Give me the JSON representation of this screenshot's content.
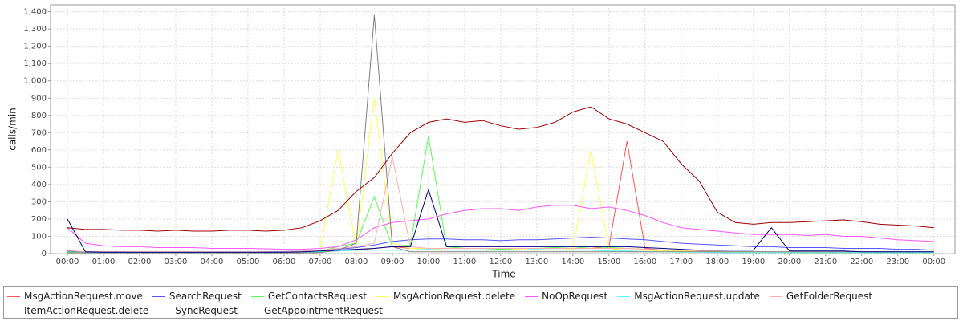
{
  "chart_data": {
    "type": "line",
    "x_label": "Time",
    "y_label": "calls/min",
    "x": [
      0,
      30,
      60,
      90,
      120,
      150,
      180,
      210,
      240,
      270,
      300,
      330,
      360,
      390,
      420,
      450,
      480,
      510,
      540,
      570,
      600,
      630,
      660,
      690,
      720,
      750,
      780,
      810,
      840,
      870,
      900,
      930,
      960,
      990,
      1020,
      1050,
      1080,
      1110,
      1140,
      1170,
      1200,
      1230,
      1260,
      1290,
      1320,
      1350,
      1380,
      1410,
      1440
    ],
    "xlim": [
      -28,
      1475
    ],
    "xticks": [
      {
        "value": 0,
        "label": "00:00"
      },
      {
        "value": 60,
        "label": "01:00"
      },
      {
        "value": 120,
        "label": "02:00"
      },
      {
        "value": 180,
        "label": "03:00"
      },
      {
        "value": 240,
        "label": "04:00"
      },
      {
        "value": 300,
        "label": "05:00"
      },
      {
        "value": 360,
        "label": "06:00"
      },
      {
        "value": 420,
        "label": "07:00"
      },
      {
        "value": 480,
        "label": "08:00"
      },
      {
        "value": 540,
        "label": "09:00"
      },
      {
        "value": 600,
        "label": "10:00"
      },
      {
        "value": 660,
        "label": "11:00"
      },
      {
        "value": 720,
        "label": "12:00"
      },
      {
        "value": 780,
        "label": "13:00"
      },
      {
        "value": 840,
        "label": "14:00"
      },
      {
        "value": 900,
        "label": "15:00"
      },
      {
        "value": 960,
        "label": "16:00"
      },
      {
        "value": 1020,
        "label": "17:00"
      },
      {
        "value": 1080,
        "label": "18:00"
      },
      {
        "value": 1140,
        "label": "19:00"
      },
      {
        "value": 1200,
        "label": "20:00"
      },
      {
        "value": 1260,
        "label": "21:00"
      },
      {
        "value": 1320,
        "label": "22:00"
      },
      {
        "value": 1380,
        "label": "23:00"
      },
      {
        "value": 1440,
        "label": "00:00"
      }
    ],
    "ylim": [
      0,
      1440
    ],
    "yticks": [
      0,
      100,
      200,
      300,
      400,
      500,
      600,
      700,
      800,
      900,
      {
        "value": 1000,
        "label": "1,000"
      },
      {
        "value": 1100,
        "label": "1,100"
      },
      {
        "value": 1200,
        "label": "1,200"
      },
      {
        "value": 1300,
        "label": "1,300"
      },
      {
        "value": 1400,
        "label": "1,400"
      }
    ],
    "grid": true,
    "legend": "bottom",
    "series": [
      {
        "name": "MsgActionRequest.move",
        "color": "#ff5555",
        "values": [
          10,
          5,
          5,
          5,
          5,
          5,
          5,
          5,
          5,
          5,
          5,
          5,
          5,
          5,
          10,
          15,
          20,
          30,
          40,
          30,
          30,
          30,
          30,
          30,
          30,
          30,
          30,
          30,
          30,
          30,
          40,
          650,
          30,
          20,
          15,
          10,
          10,
          8,
          8,
          8,
          5,
          5,
          5,
          5,
          5,
          5,
          5,
          5,
          5
        ]
      },
      {
        "name": "SearchRequest",
        "color": "#5555ff",
        "values": [
          15,
          10,
          10,
          10,
          8,
          8,
          8,
          8,
          8,
          8,
          8,
          10,
          12,
          15,
          20,
          25,
          35,
          50,
          70,
          80,
          85,
          85,
          80,
          80,
          75,
          80,
          80,
          85,
          90,
          95,
          90,
          85,
          80,
          70,
          60,
          55,
          50,
          45,
          40,
          40,
          35,
          35,
          35,
          30,
          30,
          30,
          25,
          25,
          20
        ]
      },
      {
        "name": "GetContactsRequest",
        "color": "#55ff55",
        "values": [
          10,
          5,
          5,
          5,
          5,
          5,
          5,
          5,
          5,
          5,
          5,
          5,
          5,
          8,
          15,
          40,
          60,
          330,
          40,
          50,
          680,
          40,
          30,
          30,
          25,
          30,
          30,
          35,
          30,
          40,
          35,
          30,
          25,
          20,
          15,
          15,
          10,
          10,
          10,
          8,
          8,
          8,
          8,
          8,
          5,
          5,
          5,
          5,
          5
        ]
      },
      {
        "name": "MsgActionRequest.delete",
        "color": "#ffff55",
        "values": [
          5,
          5,
          5,
          5,
          5,
          5,
          5,
          5,
          5,
          5,
          5,
          5,
          5,
          10,
          20,
          600,
          40,
          900,
          60,
          30,
          30,
          20,
          20,
          20,
          20,
          25,
          20,
          20,
          25,
          600,
          30,
          20,
          20,
          15,
          15,
          10,
          10,
          8,
          8,
          8,
          5,
          5,
          5,
          5,
          5,
          5,
          5,
          5,
          5
        ]
      },
      {
        "name": "NoOpRequest",
        "color": "#ff55ff",
        "values": [
          150,
          60,
          45,
          40,
          40,
          35,
          35,
          35,
          30,
          30,
          30,
          28,
          25,
          25,
          30,
          40,
          80,
          150,
          180,
          190,
          200,
          230,
          250,
          260,
          260,
          250,
          270,
          280,
          280,
          260,
          270,
          250,
          220,
          180,
          150,
          140,
          130,
          120,
          110,
          110,
          110,
          105,
          110,
          100,
          100,
          90,
          80,
          75,
          70
        ]
      },
      {
        "name": "MsgActionRequest.update",
        "color": "#55ffff",
        "values": [
          5,
          5,
          5,
          5,
          5,
          5,
          5,
          5,
          5,
          5,
          5,
          5,
          5,
          8,
          10,
          15,
          20,
          20,
          20,
          20,
          25,
          20,
          20,
          20,
          20,
          20,
          25,
          20,
          20,
          20,
          15,
          15,
          10,
          10,
          8,
          8,
          5,
          5,
          5,
          5,
          5,
          5,
          5,
          5,
          5,
          5,
          5,
          5,
          5
        ]
      },
      {
        "name": "GetFolderRequest",
        "color": "#ffafaf",
        "values": [
          20,
          10,
          10,
          10,
          10,
          10,
          10,
          10,
          10,
          10,
          10,
          10,
          10,
          15,
          20,
          30,
          40,
          60,
          560,
          40,
          30,
          30,
          30,
          30,
          30,
          30,
          30,
          30,
          30,
          30,
          30,
          30,
          25,
          20,
          20,
          15,
          15,
          10,
          10,
          10,
          10,
          10,
          10,
          10,
          10,
          10,
          10,
          10,
          10
        ]
      },
      {
        "name": "ItemActionRequest.delete",
        "color": "#808080",
        "values": [
          5,
          5,
          5,
          5,
          5,
          5,
          5,
          5,
          5,
          5,
          5,
          5,
          5,
          5,
          5,
          20,
          60,
          1380,
          40,
          10,
          10,
          10,
          10,
          10,
          10,
          10,
          10,
          10,
          10,
          10,
          10,
          10,
          10,
          10,
          10,
          10,
          10,
          10,
          10,
          10,
          10,
          10,
          10,
          10,
          10,
          10,
          10,
          10,
          10
        ]
      },
      {
        "name": "SyncRequest",
        "color": "#a00000",
        "values": [
          150,
          140,
          140,
          135,
          135,
          130,
          135,
          130,
          130,
          135,
          135,
          130,
          135,
          150,
          190,
          250,
          360,
          440,
          580,
          700,
          760,
          780,
          760,
          770,
          740,
          720,
          730,
          760,
          820,
          850,
          780,
          750,
          700,
          650,
          520,
          420,
          240,
          180,
          170,
          180,
          180,
          185,
          190,
          195,
          185,
          170,
          165,
          160,
          150
        ]
      },
      {
        "name": "GetAppointmentRequest",
        "color": "#000080",
        "values": [
          200,
          10,
          8,
          8,
          8,
          8,
          8,
          8,
          8,
          8,
          8,
          8,
          8,
          10,
          15,
          20,
          25,
          30,
          40,
          40,
          370,
          40,
          40,
          40,
          40,
          40,
          40,
          40,
          40,
          40,
          40,
          40,
          35,
          30,
          25,
          20,
          20,
          20,
          20,
          150,
          15,
          15,
          15,
          15,
          10,
          10,
          10,
          10,
          10
        ]
      }
    ]
  }
}
